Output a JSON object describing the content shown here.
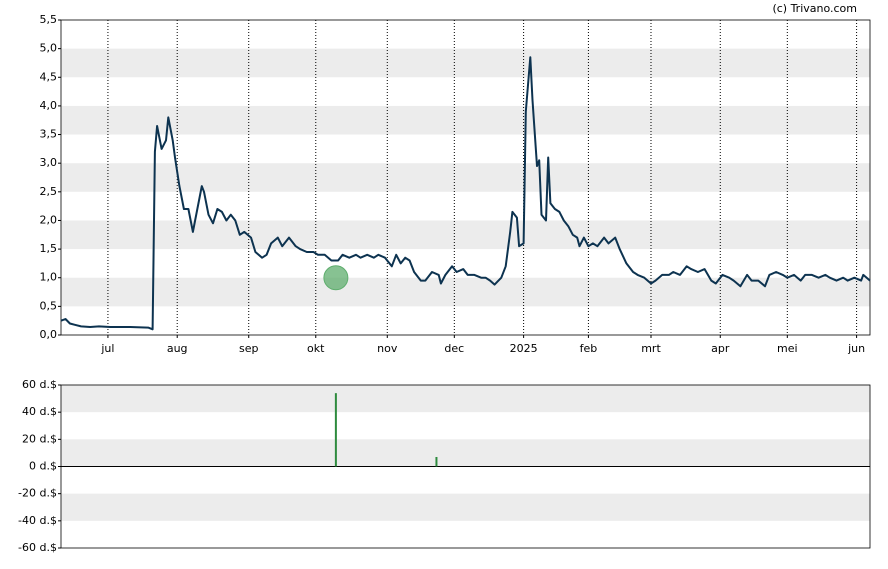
{
  "chart_data": [
    {
      "type": "line",
      "source": "(c) Trivano.com",
      "xlim": [
        0,
        362
      ],
      "xticks": [
        {
          "value": 21,
          "label": "jul"
        },
        {
          "value": 52,
          "label": "aug"
        },
        {
          "value": 84,
          "label": "sep"
        },
        {
          "value": 114,
          "label": "okt"
        },
        {
          "value": 146,
          "label": "nov"
        },
        {
          "value": 176,
          "label": "dec"
        },
        {
          "value": 207,
          "label": "2025"
        },
        {
          "value": 236,
          "label": "feb"
        },
        {
          "value": 264,
          "label": "mrt"
        },
        {
          "value": 295,
          "label": "apr"
        },
        {
          "value": 325,
          "label": "mei"
        },
        {
          "value": 356,
          "label": "jun"
        }
      ],
      "ylim": [
        0,
        5.5
      ],
      "yticks": [
        {
          "value": 0,
          "label": "0,0"
        },
        {
          "value": 0.5,
          "label": "0,5"
        },
        {
          "value": 1,
          "label": "1,0"
        },
        {
          "value": 1.5,
          "label": "1,5"
        },
        {
          "value": 2,
          "label": "2,0"
        },
        {
          "value": 2.5,
          "label": "2,5"
        },
        {
          "value": 3,
          "label": "3,0"
        },
        {
          "value": 3.5,
          "label": "3,5"
        },
        {
          "value": 4,
          "label": "4,0"
        },
        {
          "value": 4.5,
          "label": "4,5"
        },
        {
          "value": 5,
          "label": "5,0"
        },
        {
          "value": 5.5,
          "label": "5,5"
        }
      ],
      "grid": "x",
      "bands": true,
      "series": [
        {
          "color": "#0d3350",
          "x": [
            0,
            2,
            4,
            6,
            9,
            13,
            17,
            22,
            31,
            39,
            41,
            42,
            43,
            45,
            47,
            48,
            50,
            51,
            53,
            55,
            57,
            59,
            60,
            63,
            64,
            66,
            68,
            70,
            72,
            74,
            76,
            78,
            80,
            82,
            85,
            87,
            90,
            92,
            94,
            97,
            99,
            102,
            105,
            107,
            110,
            113,
            115,
            118,
            121,
            124,
            126,
            129,
            132,
            134,
            137,
            140,
            142,
            145,
            148,
            150,
            152,
            154,
            156,
            158,
            161,
            163,
            166,
            169,
            170,
            172,
            175,
            177,
            180,
            182,
            185,
            188,
            190,
            192,
            194,
            197,
            199,
            201,
            202,
            204,
            205,
            207,
            208,
            210,
            211,
            213,
            214,
            215,
            217,
            218,
            219,
            221,
            223,
            225,
            227,
            229,
            231,
            232,
            234,
            236,
            238,
            240,
            243,
            245,
            248,
            250,
            253,
            256,
            258,
            261,
            264,
            266,
            269,
            272,
            274,
            277,
            280,
            282,
            285,
            288,
            291,
            293,
            296,
            299,
            301,
            304,
            307,
            309,
            312,
            315,
            317,
            320,
            323,
            325,
            328,
            331,
            333,
            336,
            339,
            342,
            344,
            347,
            350,
            352,
            355,
            358,
            359,
            362
          ],
          "values": [
            0.25,
            0.28,
            0.2,
            0.18,
            0.15,
            0.14,
            0.15,
            0.14,
            0.14,
            0.13,
            0.1,
            3.2,
            3.65,
            3.25,
            3.4,
            3.8,
            3.4,
            3.1,
            2.6,
            2.2,
            2.2,
            1.8,
            2.0,
            2.6,
            2.5,
            2.1,
            1.95,
            2.2,
            2.15,
            2.0,
            2.1,
            2.0,
            1.75,
            1.8,
            1.7,
            1.45,
            1.35,
            1.4,
            1.6,
            1.7,
            1.55,
            1.7,
            1.55,
            1.5,
            1.45,
            1.45,
            1.4,
            1.4,
            1.3,
            1.3,
            1.4,
            1.35,
            1.4,
            1.35,
            1.4,
            1.35,
            1.4,
            1.35,
            1.2,
            1.4,
            1.25,
            1.35,
            1.3,
            1.1,
            0.95,
            0.95,
            1.1,
            1.05,
            0.9,
            1.05,
            1.2,
            1.1,
            1.15,
            1.05,
            1.05,
            1.0,
            1.0,
            0.95,
            0.88,
            1.0,
            1.2,
            1.8,
            2.15,
            2.05,
            1.55,
            1.6,
            3.9,
            4.85,
            4.1,
            2.95,
            3.05,
            2.1,
            2.0,
            3.1,
            2.3,
            2.2,
            2.15,
            2.0,
            1.9,
            1.75,
            1.7,
            1.55,
            1.7,
            1.55,
            1.6,
            1.55,
            1.7,
            1.6,
            1.7,
            1.5,
            1.25,
            1.1,
            1.05,
            1.0,
            0.9,
            0.95,
            1.05,
            1.05,
            1.1,
            1.05,
            1.2,
            1.15,
            1.1,
            1.15,
            0.95,
            0.9,
            1.05,
            1.0,
            0.95,
            0.85,
            1.05,
            0.95,
            0.95,
            0.85,
            1.05,
            1.1,
            1.05,
            1.0,
            1.05,
            0.95,
            1.05,
            1.05,
            1.0,
            1.05,
            1.0,
            0.95,
            1.0,
            0.95,
            1.0,
            0.95,
            1.05,
            0.95
          ]
        }
      ],
      "markers": [
        {
          "x": 123,
          "y": 1.0,
          "color": "#5fae6e"
        }
      ]
    },
    {
      "type": "bar",
      "xlim": [
        0,
        362
      ],
      "ylim": [
        -60,
        60
      ],
      "yticks": [
        {
          "value": -60,
          "label": "-60 d.$"
        },
        {
          "value": -40,
          "label": "-40 d.$"
        },
        {
          "value": -20,
          "label": "-20 d.$"
        },
        {
          "value": 0,
          "label": "0 d.$"
        },
        {
          "value": 20,
          "label": "20 d.$"
        },
        {
          "value": 40,
          "label": "40 d.$"
        },
        {
          "value": 60,
          "label": "60 d.$"
        }
      ],
      "bands": true,
      "color": "#2e8b3e",
      "x": [
        123,
        168
      ],
      "values": [
        54,
        7
      ]
    }
  ]
}
